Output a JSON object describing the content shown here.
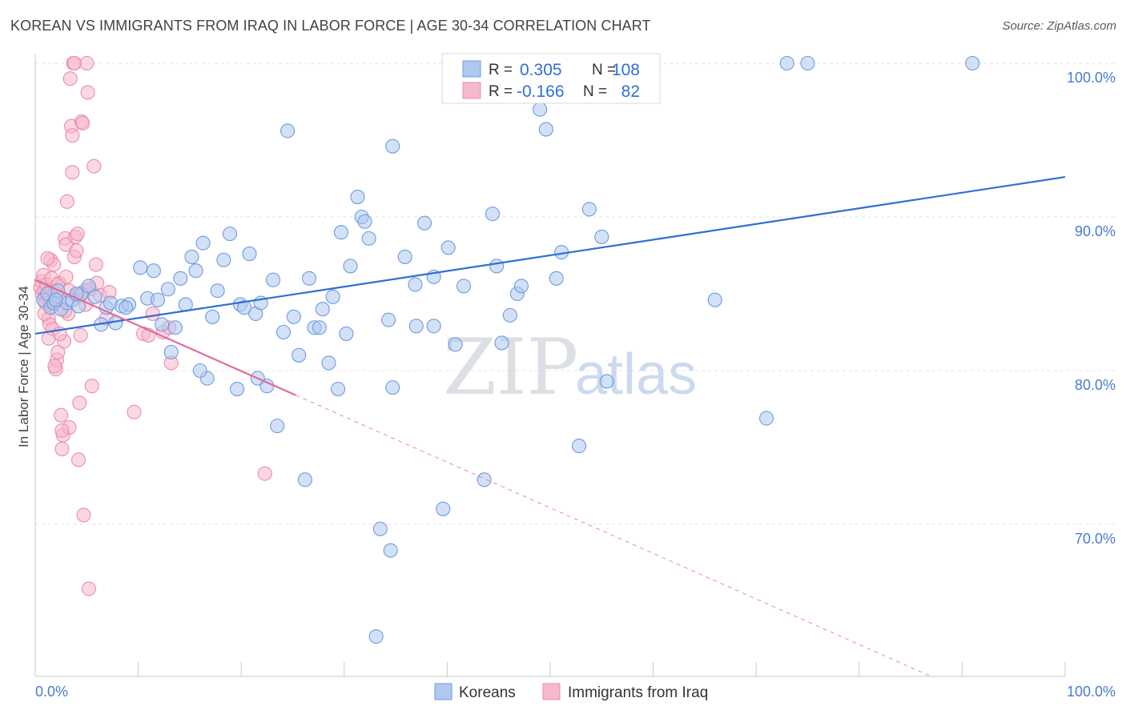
{
  "title": "KOREAN VS IMMIGRANTS FROM IRAQ IN LABOR FORCE | AGE 30-34 CORRELATION CHART",
  "source": "Source: ZipAtlas.com",
  "watermark": {
    "zip": "ZIP",
    "atlas": "atlas"
  },
  "colors": {
    "korean_fill": "#aec8ee",
    "korean_stroke": "#6f9be0",
    "korean_line": "#2e6fd4",
    "iraq_fill": "#f6b8cb",
    "iraq_stroke": "#ec8cab",
    "iraq_line": "#e26b98",
    "grid": "#dfe3ea",
    "tick_label": "#4a7bd0"
  },
  "legend": {
    "rows": [
      {
        "r_label": "R =",
        "r_value": "0.305",
        "n_label": "N =",
        "n_value": "108"
      },
      {
        "r_label": "R =",
        "r_value": "-0.166",
        "n_label": "N =",
        "n_value": "82"
      }
    ]
  },
  "bottom_legend": [
    "Koreans",
    "Immigrants from Iraq"
  ],
  "chart_data": {
    "type": "scatter",
    "title": "KOREAN VS IMMIGRANTS FROM IRAQ IN LABOR FORCE | AGE 30-34 CORRELATION CHART",
    "xlabel": "",
    "ylabel": "In Labor Force | Age 30-34",
    "xlim": [
      0,
      100
    ],
    "ylim": [
      60,
      101.5
    ],
    "x_tick_labels": [
      "0.0%",
      "100.0%"
    ],
    "y_ticks": [
      70,
      80,
      90,
      100
    ],
    "y_tick_labels": [
      "70.0%",
      "80.0%",
      "90.0%",
      "100.0%"
    ],
    "grid": true,
    "legend_position": "top-center",
    "series": [
      {
        "name": "Koreans",
        "r": 0.305,
        "n": 108,
        "trend": {
          "x0": 0,
          "y0": 82.4,
          "x1": 100,
          "y1": 92.6
        },
        "points": [
          [
            0.8,
            84.6
          ],
          [
            1.2,
            85.0
          ],
          [
            1.5,
            84.1
          ],
          [
            1.8,
            84.4
          ],
          [
            2.2,
            85.2
          ],
          [
            2.5,
            84.0
          ],
          [
            3.1,
            84.4
          ],
          [
            3.6,
            84.6
          ],
          [
            4.2,
            84.2
          ],
          [
            4.5,
            85.0
          ],
          [
            5.2,
            85.5
          ],
          [
            5.8,
            84.8
          ],
          [
            6.4,
            83.0
          ],
          [
            6.9,
            84.1
          ],
          [
            7.3,
            84.4
          ],
          [
            7.8,
            83.1
          ],
          [
            8.4,
            84.2
          ],
          [
            9.1,
            84.3
          ],
          [
            10.2,
            86.7
          ],
          [
            10.9,
            84.7
          ],
          [
            11.5,
            86.5
          ],
          [
            12.3,
            83.0
          ],
          [
            12.9,
            85.3
          ],
          [
            13.2,
            81.2
          ],
          [
            14.1,
            86.0
          ],
          [
            14.6,
            84.3
          ],
          [
            15.2,
            87.4
          ],
          [
            15.6,
            86.5
          ],
          [
            16.3,
            88.3
          ],
          [
            16.7,
            79.5
          ],
          [
            17.2,
            83.5
          ],
          [
            17.7,
            85.2
          ],
          [
            18.3,
            87.2
          ],
          [
            18.9,
            88.9
          ],
          [
            19.6,
            78.8
          ],
          [
            19.9,
            84.3
          ],
          [
            20.3,
            84.1
          ],
          [
            20.8,
            87.6
          ],
          [
            21.4,
            83.7
          ],
          [
            21.9,
            84.4
          ],
          [
            22.5,
            79.0
          ],
          [
            23.1,
            85.9
          ],
          [
            23.5,
            76.4
          ],
          [
            24.1,
            82.5
          ],
          [
            24.5,
            95.6
          ],
          [
            25.1,
            83.5
          ],
          [
            25.6,
            81.0
          ],
          [
            26.2,
            72.9
          ],
          [
            26.6,
            86.0
          ],
          [
            27.1,
            82.8
          ],
          [
            27.6,
            82.8
          ],
          [
            27.9,
            84.0
          ],
          [
            28.5,
            80.5
          ],
          [
            28.9,
            84.8
          ],
          [
            29.4,
            78.8
          ],
          [
            29.7,
            89.0
          ],
          [
            30.2,
            82.4
          ],
          [
            30.6,
            86.8
          ],
          [
            31.3,
            91.3
          ],
          [
            31.7,
            90.0
          ],
          [
            32.0,
            89.7
          ],
          [
            32.4,
            88.6
          ],
          [
            33.1,
            62.7
          ],
          [
            33.5,
            69.7
          ],
          [
            34.3,
            83.3
          ],
          [
            34.7,
            94.6
          ],
          [
            34.7,
            78.9
          ],
          [
            34.5,
            68.3
          ],
          [
            35.9,
            87.4
          ],
          [
            36.9,
            85.6
          ],
          [
            37.0,
            82.9
          ],
          [
            37.8,
            89.6
          ],
          [
            38.7,
            86.1
          ],
          [
            38.7,
            82.9
          ],
          [
            39.6,
            71.0
          ],
          [
            40.1,
            88.0
          ],
          [
            40.8,
            81.7
          ],
          [
            41.6,
            85.5
          ],
          [
            42.2,
            100.0
          ],
          [
            43.6,
            72.9
          ],
          [
            44.4,
            90.2
          ],
          [
            44.8,
            86.8
          ],
          [
            45.3,
            81.8
          ],
          [
            46.1,
            83.6
          ],
          [
            46.8,
            85.0
          ],
          [
            47.2,
            85.5
          ],
          [
            47.9,
            98.0
          ],
          [
            49.0,
            97.0
          ],
          [
            49.6,
            95.7
          ],
          [
            50.6,
            86.0
          ],
          [
            51.1,
            87.7
          ],
          [
            52.8,
            75.1
          ],
          [
            53.8,
            90.5
          ],
          [
            55.0,
            88.7
          ],
          [
            55.5,
            79.3
          ],
          [
            57.4,
            100.0
          ],
          [
            66.0,
            84.6
          ],
          [
            71.0,
            76.9
          ],
          [
            73.0,
            100.0
          ],
          [
            75.0,
            100.0
          ],
          [
            91.0,
            100.0
          ],
          [
            2.0,
            84.6
          ],
          [
            4.0,
            85.0
          ],
          [
            8.8,
            84.1
          ],
          [
            11.9,
            84.6
          ],
          [
            13.6,
            82.8
          ],
          [
            16.0,
            80.0
          ],
          [
            21.6,
            79.5
          ]
        ]
      },
      {
        "name": "Immigrants from Iraq",
        "r": -0.166,
        "n": 82,
        "trend": {
          "x0": 0,
          "y0": 85.9,
          "x1": 25.3,
          "y1": 78.4,
          "dash_x1": 87,
          "dash_y1": 60.1
        },
        "points": [
          [
            0.5,
            85.4
          ],
          [
            0.6,
            85.8
          ],
          [
            0.7,
            85.0
          ],
          [
            0.8,
            86.2
          ],
          [
            0.9,
            85.2
          ],
          [
            1.0,
            84.8
          ],
          [
            1.1,
            85.6
          ],
          [
            1.2,
            84.6
          ],
          [
            1.3,
            83.4
          ],
          [
            1.4,
            83.0
          ],
          [
            1.5,
            87.2
          ],
          [
            1.6,
            85.3
          ],
          [
            1.7,
            82.7
          ],
          [
            1.8,
            86.9
          ],
          [
            1.9,
            85.1
          ],
          [
            2.0,
            80.1
          ],
          [
            2.1,
            80.7
          ],
          [
            2.2,
            81.2
          ],
          [
            2.3,
            85.7
          ],
          [
            2.4,
            84.7
          ],
          [
            2.5,
            77.1
          ],
          [
            2.6,
            74.9
          ],
          [
            2.7,
            75.8
          ],
          [
            2.8,
            81.9
          ],
          [
            2.9,
            88.6
          ],
          [
            3.0,
            88.2
          ],
          [
            3.1,
            91.0
          ],
          [
            3.2,
            83.7
          ],
          [
            3.3,
            76.3
          ],
          [
            3.4,
            99.0
          ],
          [
            3.5,
            95.9
          ],
          [
            3.6,
            95.3
          ],
          [
            3.7,
            100.0
          ],
          [
            3.8,
            87.4
          ],
          [
            3.9,
            88.7
          ],
          [
            4.0,
            87.8
          ],
          [
            4.1,
            88.9
          ],
          [
            4.2,
            74.2
          ],
          [
            4.3,
            77.9
          ],
          [
            4.4,
            82.3
          ],
          [
            4.5,
            96.2
          ],
          [
            4.6,
            96.1
          ],
          [
            4.7,
            70.6
          ],
          [
            4.8,
            85.2
          ],
          [
            4.9,
            84.3
          ],
          [
            5.0,
            100.0
          ],
          [
            5.1,
            98.1
          ],
          [
            5.3,
            85.3
          ],
          [
            5.5,
            79.0
          ],
          [
            5.7,
            93.3
          ],
          [
            5.9,
            86.9
          ],
          [
            6.3,
            84.9
          ],
          [
            6.9,
            83.4
          ],
          [
            9.6,
            77.3
          ],
          [
            10.5,
            82.4
          ],
          [
            11.4,
            83.7
          ],
          [
            12.4,
            82.5
          ],
          [
            13.0,
            82.8
          ],
          [
            13.2,
            80.5
          ],
          [
            22.3,
            73.3
          ],
          [
            5.2,
            65.8
          ],
          [
            1.6,
            86.0
          ],
          [
            2.2,
            85.6
          ],
          [
            2.9,
            83.9
          ],
          [
            3.3,
            85.2
          ],
          [
            3.6,
            92.9
          ],
          [
            4.0,
            84.9
          ],
          [
            1.0,
            84.4
          ],
          [
            1.3,
            82.1
          ],
          [
            1.7,
            84.2
          ],
          [
            2.4,
            82.4
          ],
          [
            3.0,
            86.1
          ],
          [
            3.8,
            100.0
          ],
          [
            4.4,
            84.9
          ],
          [
            0.9,
            83.7
          ],
          [
            1.2,
            87.3
          ],
          [
            1.5,
            84.5
          ],
          [
            1.9,
            80.3
          ],
          [
            2.6,
            76.1
          ],
          [
            6.0,
            85.7
          ],
          [
            7.2,
            85.1
          ],
          [
            11.0,
            82.3
          ]
        ]
      }
    ]
  }
}
